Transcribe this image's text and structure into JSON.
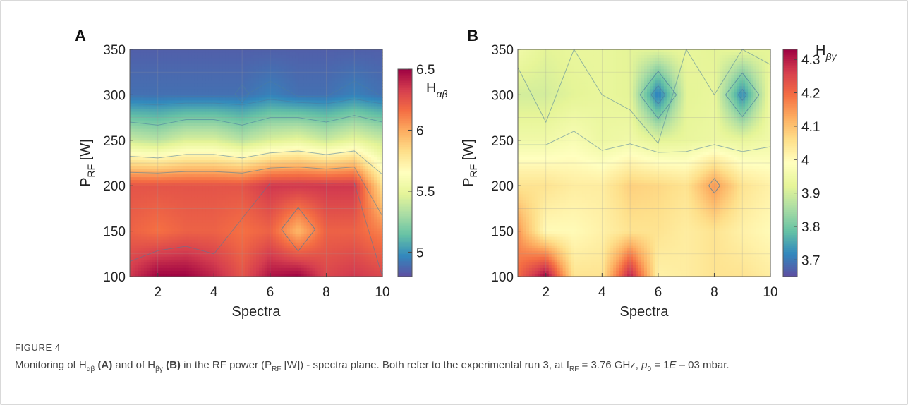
{
  "figure_label": "FIGURE 4",
  "caption": {
    "p1": "Monitoring of H",
    "s1": "αβ",
    "p2": " ",
    "b1": "(A)",
    "p3": " and of H",
    "s2": "βγ",
    "p4": " ",
    "b2": "(B)",
    "p5": " in the RF power (P",
    "s3": "RF",
    "p6": " [W]) - spectra plane. Both refer to the experimental run 3, at f",
    "s4": "RF",
    "p7": " = 3.76 GHz, ",
    "i1": "p",
    "s5": "0",
    "p8": " = 1",
    "i2": "E",
    "p9": " – 03 mbar."
  },
  "chart_data": [
    {
      "panel": "A",
      "type": "heatmap",
      "xlabel": "Spectra",
      "ylabel_main": "P",
      "ylabel_sub": "RF",
      "ylabel_unit": " [W]",
      "x_ticks": [
        "2",
        "4",
        "6",
        "8",
        "10"
      ],
      "y_ticks": [
        "100",
        "150",
        "200",
        "250",
        "300",
        "350"
      ],
      "xlim": [
        1,
        10
      ],
      "ylim": [
        100,
        350
      ],
      "colorbar_label_main": "H",
      "colorbar_label_sub": "αβ",
      "colorbar_ticks": [
        "5",
        "5.5",
        "6",
        "6.5"
      ],
      "colorbar_range": [
        4.8,
        6.5
      ],
      "colormap": [
        "#5e4fa2",
        "#3288bd",
        "#66c2a5",
        "#abdda4",
        "#e6f598",
        "#ffffbf",
        "#fee08b",
        "#fdae61",
        "#f46d43",
        "#d53e4f",
        "#9e0142"
      ],
      "contour_color": "#4a7ea0",
      "x": [
        1,
        2,
        3,
        4,
        5,
        6,
        7,
        8,
        9,
        10
      ],
      "y": [
        100,
        150,
        200,
        250,
        300,
        350
      ],
      "z": [
        [
          6.35,
          6.5,
          6.5,
          6.4,
          6.25,
          6.45,
          6.5,
          6.3,
          6.35,
          6.3
        ],
        [
          6.2,
          6.15,
          6.2,
          6.2,
          6.15,
          6.2,
          5.95,
          6.2,
          6.2,
          6.1
        ],
        [
          6.25,
          6.25,
          6.25,
          6.25,
          6.25,
          6.35,
          6.35,
          6.35,
          6.35,
          5.8
        ],
        [
          5.4,
          5.35,
          5.45,
          5.45,
          5.35,
          5.45,
          5.5,
          5.4,
          5.5,
          5.4
        ],
        [
          4.9,
          4.9,
          4.9,
          4.9,
          4.9,
          4.95,
          4.9,
          4.9,
          4.95,
          4.9
        ],
        [
          4.85,
          4.85,
          4.85,
          4.85,
          4.85,
          4.85,
          4.85,
          4.85,
          4.85,
          4.85
        ]
      ]
    },
    {
      "panel": "B",
      "type": "heatmap",
      "xlabel": "Spectra",
      "ylabel_main": "P",
      "ylabel_sub": "RF",
      "ylabel_unit": " [W]",
      "x_ticks": [
        "2",
        "4",
        "6",
        "8",
        "10"
      ],
      "y_ticks": [
        "100",
        "150",
        "200",
        "250",
        "300",
        "350"
      ],
      "xlim": [
        1,
        10
      ],
      "ylim": [
        100,
        350
      ],
      "colorbar_label_main": "H",
      "colorbar_label_sub": "βγ",
      "colorbar_ticks": [
        "3.7",
        "3.8",
        "3.9",
        "4",
        "4.1",
        "4.2",
        "4.3"
      ],
      "colorbar_range": [
        3.65,
        4.33
      ],
      "colormap": [
        "#5e4fa2",
        "#3288bd",
        "#66c2a5",
        "#abdda4",
        "#e6f598",
        "#ffffbf",
        "#fee08b",
        "#fdae61",
        "#f46d43",
        "#d53e4f",
        "#9e0142"
      ],
      "contour_color": "#4a7ea0",
      "x": [
        1,
        2,
        3,
        4,
        5,
        6,
        7,
        8,
        9,
        10
      ],
      "y": [
        100,
        150,
        200,
        250,
        300,
        350
      ],
      "z": [
        [
          4.2,
          4.33,
          4.05,
          4.05,
          4.3,
          4.02,
          4.03,
          4.05,
          4.05,
          4.03
        ],
        [
          4.15,
          4.0,
          4.0,
          4.02,
          4.05,
          4.05,
          4.03,
          4.05,
          4.02,
          4.0
        ],
        [
          4.05,
          4.05,
          4.03,
          4.03,
          4.08,
          4.07,
          4.05,
          4.15,
          4.05,
          4.02
        ],
        [
          3.95,
          3.95,
          3.97,
          3.94,
          3.95,
          3.92,
          3.93,
          3.94,
          3.93,
          3.95
        ],
        [
          3.9,
          3.9,
          3.92,
          3.93,
          3.92,
          3.7,
          3.92,
          3.93,
          3.72,
          3.95
        ],
        [
          3.95,
          3.92,
          3.93,
          3.93,
          3.92,
          3.92,
          3.93,
          3.92,
          3.93,
          3.92
        ]
      ]
    }
  ]
}
